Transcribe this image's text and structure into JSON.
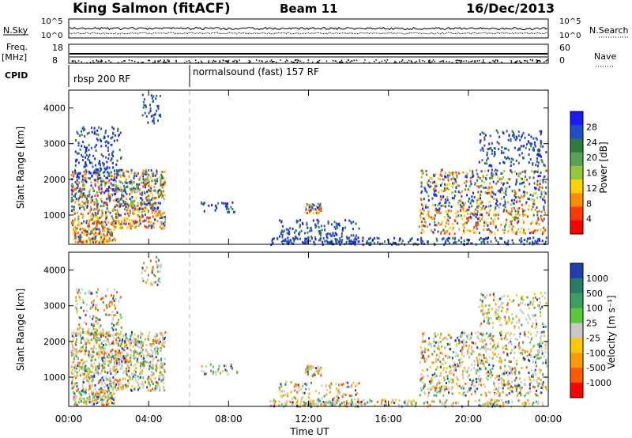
{
  "header": {
    "station": "King Salmon (fitACF)",
    "beam": "Beam 11",
    "date": "16/Dec/2013"
  },
  "top_panels": {
    "nsky_label": "N.Sky",
    "nsky_ticks": [
      "10^5",
      "10^0"
    ],
    "nsearch_label": "N.Search",
    "nsearch_ticks": [
      "10^5",
      "10^0"
    ],
    "freq_label": "Freq.",
    "freq_unit": "[MHz]",
    "freq_ticks": [
      "18",
      "8"
    ],
    "nave_label": "Nave",
    "nave_ticks": [
      "60",
      "0"
    ],
    "cpid_label": "CPID",
    "cpid_segments": [
      {
        "label": "rbsp 200 RF",
        "start_hour": 0
      },
      {
        "label": "normalsound (fast) 157 RF",
        "start_hour": 5.75
      }
    ]
  },
  "chart_data": [
    {
      "type": "heatmap",
      "name": "power",
      "ylabel": "Slant Range [km]",
      "ylim": [
        180,
        4500
      ],
      "yticks": [
        "1000",
        "2000",
        "3000",
        "4000"
      ],
      "xlim": [
        0,
        24
      ],
      "colorbar": {
        "label": "Power [dB]",
        "ticks": [
          "28",
          "24",
          "20",
          "16",
          "12",
          "8",
          "4"
        ],
        "colors": [
          "#1a1aff",
          "#1f4fc8",
          "#2f7a3f",
          "#5aa15a",
          "#95c83a",
          "#ffd200",
          "#ff8c00",
          "#ff3a00",
          "#ff0000"
        ]
      }
    },
    {
      "type": "heatmap",
      "name": "velocity",
      "ylabel": "Slant Range [km]",
      "ylim": [
        180,
        4500
      ],
      "yticks": [
        "1000",
        "2000",
        "3000",
        "4000"
      ],
      "xlim": [
        0,
        24
      ],
      "colorbar": {
        "label": "Velocity [m s⁻¹]",
        "ticks": [
          "1000",
          "500",
          "100",
          "25",
          "-25",
          "-100",
          "-500",
          "-1000"
        ],
        "colors": [
          "#1f3fb0",
          "#2a7a6a",
          "#3aa060",
          "#59c83a",
          "#c8c8c8",
          "#ffc800",
          "#ff9a00",
          "#ff5a00",
          "#ff0000"
        ]
      }
    }
  ],
  "xaxis": {
    "label": "Time UT",
    "ticks": [
      "00:00",
      "04:00",
      "08:00",
      "12:00",
      "16:00",
      "20:00",
      "00:00"
    ]
  },
  "colors": {
    "ground_scatter_gray": "#c0c0c0",
    "frame": "#000000"
  }
}
